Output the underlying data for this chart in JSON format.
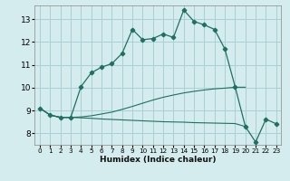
{
  "xlabel": "Humidex (Indice chaleur)",
  "bg_color": "#d4ecee",
  "grid_color": "#aad0d4",
  "line_color": "#1e7060",
  "xlim": [
    -0.5,
    23.5
  ],
  "ylim": [
    7.5,
    13.6
  ],
  "xticks": [
    0,
    1,
    2,
    3,
    4,
    5,
    6,
    7,
    8,
    9,
    10,
    11,
    12,
    13,
    14,
    15,
    16,
    17,
    18,
    19,
    20,
    21,
    22,
    23
  ],
  "yticks": [
    8,
    9,
    10,
    11,
    12,
    13
  ],
  "s1_x": [
    0,
    1,
    2,
    3,
    4,
    5,
    6,
    7,
    8,
    9,
    10,
    11,
    12,
    13,
    14,
    15,
    16,
    17,
    18,
    19,
    20,
    21,
    22,
    23
  ],
  "s1_y": [
    9.1,
    8.8,
    8.7,
    8.7,
    10.05,
    10.65,
    10.9,
    11.05,
    11.5,
    12.55,
    12.1,
    12.15,
    12.35,
    12.2,
    13.4,
    12.9,
    12.75,
    12.55,
    11.7,
    10.05,
    8.3,
    7.62,
    8.62,
    8.42
  ],
  "s2_x": [
    0,
    1,
    2,
    3,
    4,
    5,
    6,
    7,
    8,
    9,
    10,
    11,
    12,
    13,
    14,
    15,
    16,
    17,
    18,
    19,
    20
  ],
  "s2_y": [
    9.1,
    8.8,
    8.7,
    8.7,
    8.72,
    8.77,
    8.85,
    8.93,
    9.05,
    9.18,
    9.32,
    9.46,
    9.58,
    9.68,
    9.77,
    9.84,
    9.9,
    9.95,
    9.98,
    10.02,
    10.02
  ],
  "s3_x": [
    0,
    1,
    2,
    3,
    4,
    5,
    6,
    7,
    8,
    9,
    10,
    11,
    12,
    13,
    14,
    15,
    16,
    17,
    18,
    19,
    20
  ],
  "s3_y": [
    9.1,
    8.8,
    8.7,
    8.7,
    8.68,
    8.66,
    8.63,
    8.61,
    8.59,
    8.57,
    8.55,
    8.53,
    8.51,
    8.5,
    8.49,
    8.47,
    8.46,
    8.45,
    8.44,
    8.43,
    8.3
  ]
}
